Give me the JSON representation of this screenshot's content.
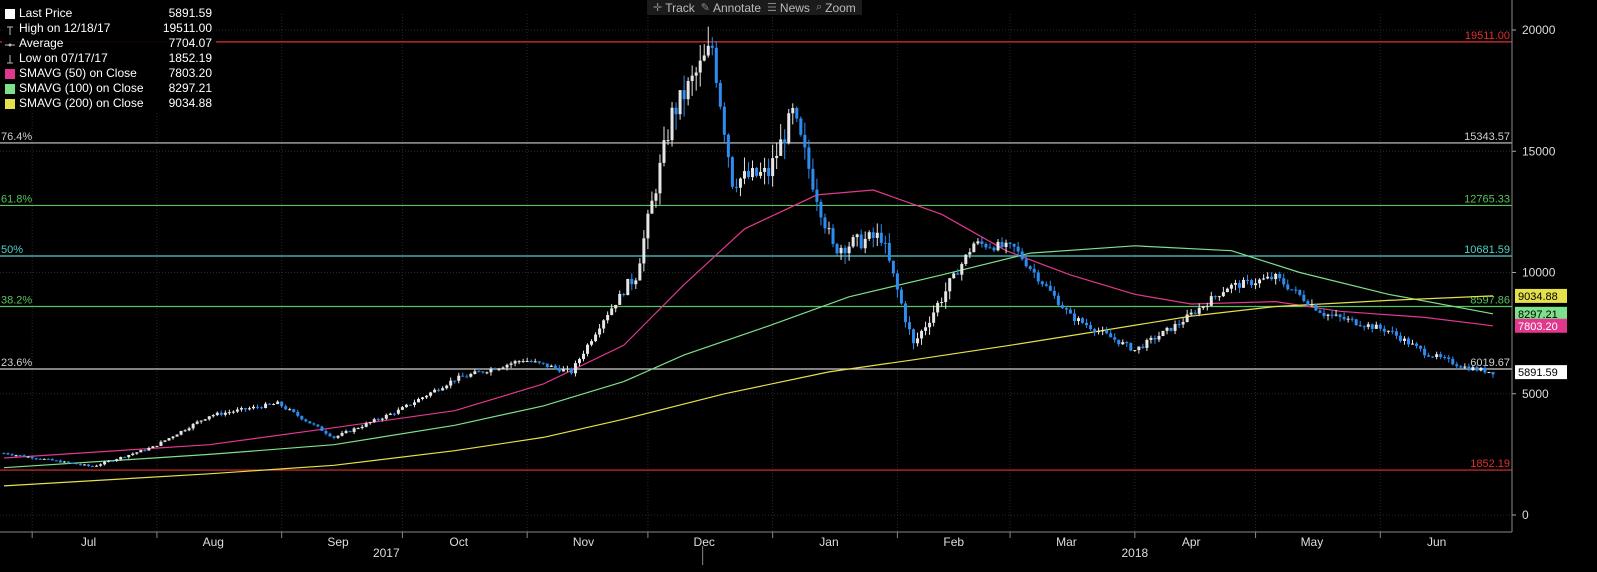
{
  "toolbar": {
    "track": "Track",
    "annotate": "Annotate",
    "news": "News",
    "zoom": "Zoom"
  },
  "legend": [
    {
      "label": "Last Price",
      "value": "5891.59",
      "color": "#ffffff",
      "icon": "square"
    },
    {
      "label": "High on 12/18/17",
      "value": "19511.00",
      "color": "#ffffff",
      "icon": "high-marker"
    },
    {
      "label": "Average",
      "value": "7704.07",
      "color": "#ffffff",
      "icon": "average-marker"
    },
    {
      "label": "Low on 07/17/17",
      "value": "1852.19",
      "color": "#ffffff",
      "icon": "low-marker"
    },
    {
      "label": "SMAVG (50) on Close",
      "value": "7803.20",
      "color": "#e0388c",
      "icon": "square"
    },
    {
      "label": "SMAVG (100) on Close",
      "value": "8297.21",
      "color": "#7ee08a",
      "icon": "square"
    },
    {
      "label": "SMAVG (200) on Close",
      "value": "9034.88",
      "color": "#e6e04a",
      "icon": "square"
    }
  ],
  "chart_data": {
    "type": "candlestick",
    "y_axis": {
      "ticks": [
        "0",
        "5000",
        "10000",
        "15000",
        "20000"
      ],
      "ylim": [
        0,
        20500
      ],
      "side": "right"
    },
    "x_axis": {
      "months": [
        "Jul",
        "Aug",
        "Sep",
        "Oct",
        "Nov",
        "Dec",
        "Jan",
        "Feb",
        "Mar",
        "Apr",
        "May",
        "Jun"
      ],
      "years": [
        "2017",
        "2018"
      ],
      "start": "2017-06-24",
      "end": "2018-06-29"
    },
    "levels": [
      {
        "label": "76.4%",
        "value": 15343.57,
        "value_label": "15343.57",
        "color": "#cfcfcf"
      },
      {
        "label": "61.8%",
        "value": 12765.33,
        "value_label": "12765.33",
        "color": "#58c25c"
      },
      {
        "label": "50%",
        "value": 10681.59,
        "value_label": "10681.59",
        "color": "#4fd0c8"
      },
      {
        "label": "38.2%",
        "value": 8597.86,
        "value_label": "8597.86",
        "color": "#58c25c"
      },
      {
        "label": "23.6%",
        "value": 6019.67,
        "value_label": "6019.67",
        "color": "#cfcfcf"
      },
      {
        "label": "",
        "value": 19511.0,
        "value_label": "19511.00",
        "color": "#e03030"
      },
      {
        "label": "",
        "value": 1852.19,
        "value_label": "1852.19",
        "color": "#e03030"
      }
    ],
    "badges": [
      {
        "value": 9034.88,
        "label": "9034.88",
        "bg": "#e6e04a",
        "fg": "#000000"
      },
      {
        "value": 8297.21,
        "label": "8297.21",
        "bg": "#7ee08a",
        "fg": "#000000"
      },
      {
        "value": 7803.2,
        "label": "7803.20",
        "bg": "#e0388c",
        "fg": "#ffffff"
      },
      {
        "value": 5891.59,
        "label": "5891.59",
        "bg": "#ffffff",
        "fg": "#000000"
      }
    ],
    "closes": [
      {
        "date": "2017-06-24",
        "value": 2550
      },
      {
        "date": "2017-07-16",
        "value": 2000
      },
      {
        "date": "2017-07-31",
        "value": 2800
      },
      {
        "date": "2017-08-14",
        "value": 4100
      },
      {
        "date": "2017-08-31",
        "value": 4600
      },
      {
        "date": "2017-09-14",
        "value": 3200
      },
      {
        "date": "2017-09-30",
        "value": 4300
      },
      {
        "date": "2017-10-14",
        "value": 5600
      },
      {
        "date": "2017-10-31",
        "value": 6400
      },
      {
        "date": "2017-11-12",
        "value": 5900
      },
      {
        "date": "2017-11-20",
        "value": 8100
      },
      {
        "date": "2017-11-28",
        "value": 9900
      },
      {
        "date": "2017-12-07",
        "value": 16500
      },
      {
        "date": "2017-12-17",
        "value": 19300
      },
      {
        "date": "2017-12-22",
        "value": 13800
      },
      {
        "date": "2017-12-31",
        "value": 14100
      },
      {
        "date": "2018-01-06",
        "value": 16500
      },
      {
        "date": "2018-01-16",
        "value": 11000
      },
      {
        "date": "2018-01-28",
        "value": 11500
      },
      {
        "date": "2018-02-05",
        "value": 7000
      },
      {
        "date": "2018-02-20",
        "value": 11200
      },
      {
        "date": "2018-03-02",
        "value": 11000
      },
      {
        "date": "2018-03-16",
        "value": 8200
      },
      {
        "date": "2018-04-01",
        "value": 6800
      },
      {
        "date": "2018-04-12",
        "value": 7900
      },
      {
        "date": "2018-04-24",
        "value": 9400
      },
      {
        "date": "2018-05-06",
        "value": 9800
      },
      {
        "date": "2018-05-18",
        "value": 8300
      },
      {
        "date": "2018-06-03",
        "value": 7600
      },
      {
        "date": "2018-06-12",
        "value": 6700
      },
      {
        "date": "2018-06-22",
        "value": 6100
      },
      {
        "date": "2018-06-29",
        "value": 5891.59
      }
    ],
    "series": [
      {
        "name": "SMAVG (50) on Close",
        "color": "#e0388c",
        "points": [
          [
            "2017-06-24",
            2350
          ],
          [
            "2017-08-14",
            2900
          ],
          [
            "2017-09-14",
            3600
          ],
          [
            "2017-10-14",
            4300
          ],
          [
            "2017-11-05",
            5400
          ],
          [
            "2017-11-25",
            7000
          ],
          [
            "2017-12-10",
            9500
          ],
          [
            "2017-12-25",
            11800
          ],
          [
            "2018-01-12",
            13200
          ],
          [
            "2018-01-26",
            13400
          ],
          [
            "2018-02-12",
            12400
          ],
          [
            "2018-02-28",
            10900
          ],
          [
            "2018-03-16",
            9900
          ],
          [
            "2018-04-01",
            9100
          ],
          [
            "2018-04-15",
            8700
          ],
          [
            "2018-05-06",
            8800
          ],
          [
            "2018-05-22",
            8400
          ],
          [
            "2018-06-12",
            8150
          ],
          [
            "2018-06-29",
            7803.2
          ]
        ]
      },
      {
        "name": "SMAVG (100) on Close",
        "color": "#7ee08a",
        "points": [
          [
            "2017-06-24",
            1950
          ],
          [
            "2017-08-14",
            2500
          ],
          [
            "2017-09-14",
            2900
          ],
          [
            "2017-10-14",
            3700
          ],
          [
            "2017-11-05",
            4500
          ],
          [
            "2017-11-25",
            5500
          ],
          [
            "2017-12-10",
            6600
          ],
          [
            "2017-12-31",
            7800
          ],
          [
            "2018-01-20",
            9000
          ],
          [
            "2018-02-12",
            9900
          ],
          [
            "2018-03-06",
            10800
          ],
          [
            "2018-04-01",
            11100
          ],
          [
            "2018-04-25",
            10900
          ],
          [
            "2018-05-12",
            10000
          ],
          [
            "2018-06-03",
            9100
          ],
          [
            "2018-06-29",
            8297.21
          ]
        ]
      },
      {
        "name": "SMAVG (200) on Close",
        "color": "#e6e04a",
        "points": [
          [
            "2017-06-24",
            1200
          ],
          [
            "2017-08-14",
            1700
          ],
          [
            "2017-09-14",
            2050
          ],
          [
            "2017-10-14",
            2650
          ],
          [
            "2017-11-05",
            3200
          ],
          [
            "2017-11-25",
            3950
          ],
          [
            "2017-12-20",
            5000
          ],
          [
            "2018-01-15",
            5900
          ],
          [
            "2018-02-05",
            6400
          ],
          [
            "2018-03-01",
            7000
          ],
          [
            "2018-03-20",
            7500
          ],
          [
            "2018-04-15",
            8200
          ],
          [
            "2018-05-06",
            8600
          ],
          [
            "2018-06-03",
            8850
          ],
          [
            "2018-06-29",
            9034.88
          ]
        ]
      }
    ]
  }
}
